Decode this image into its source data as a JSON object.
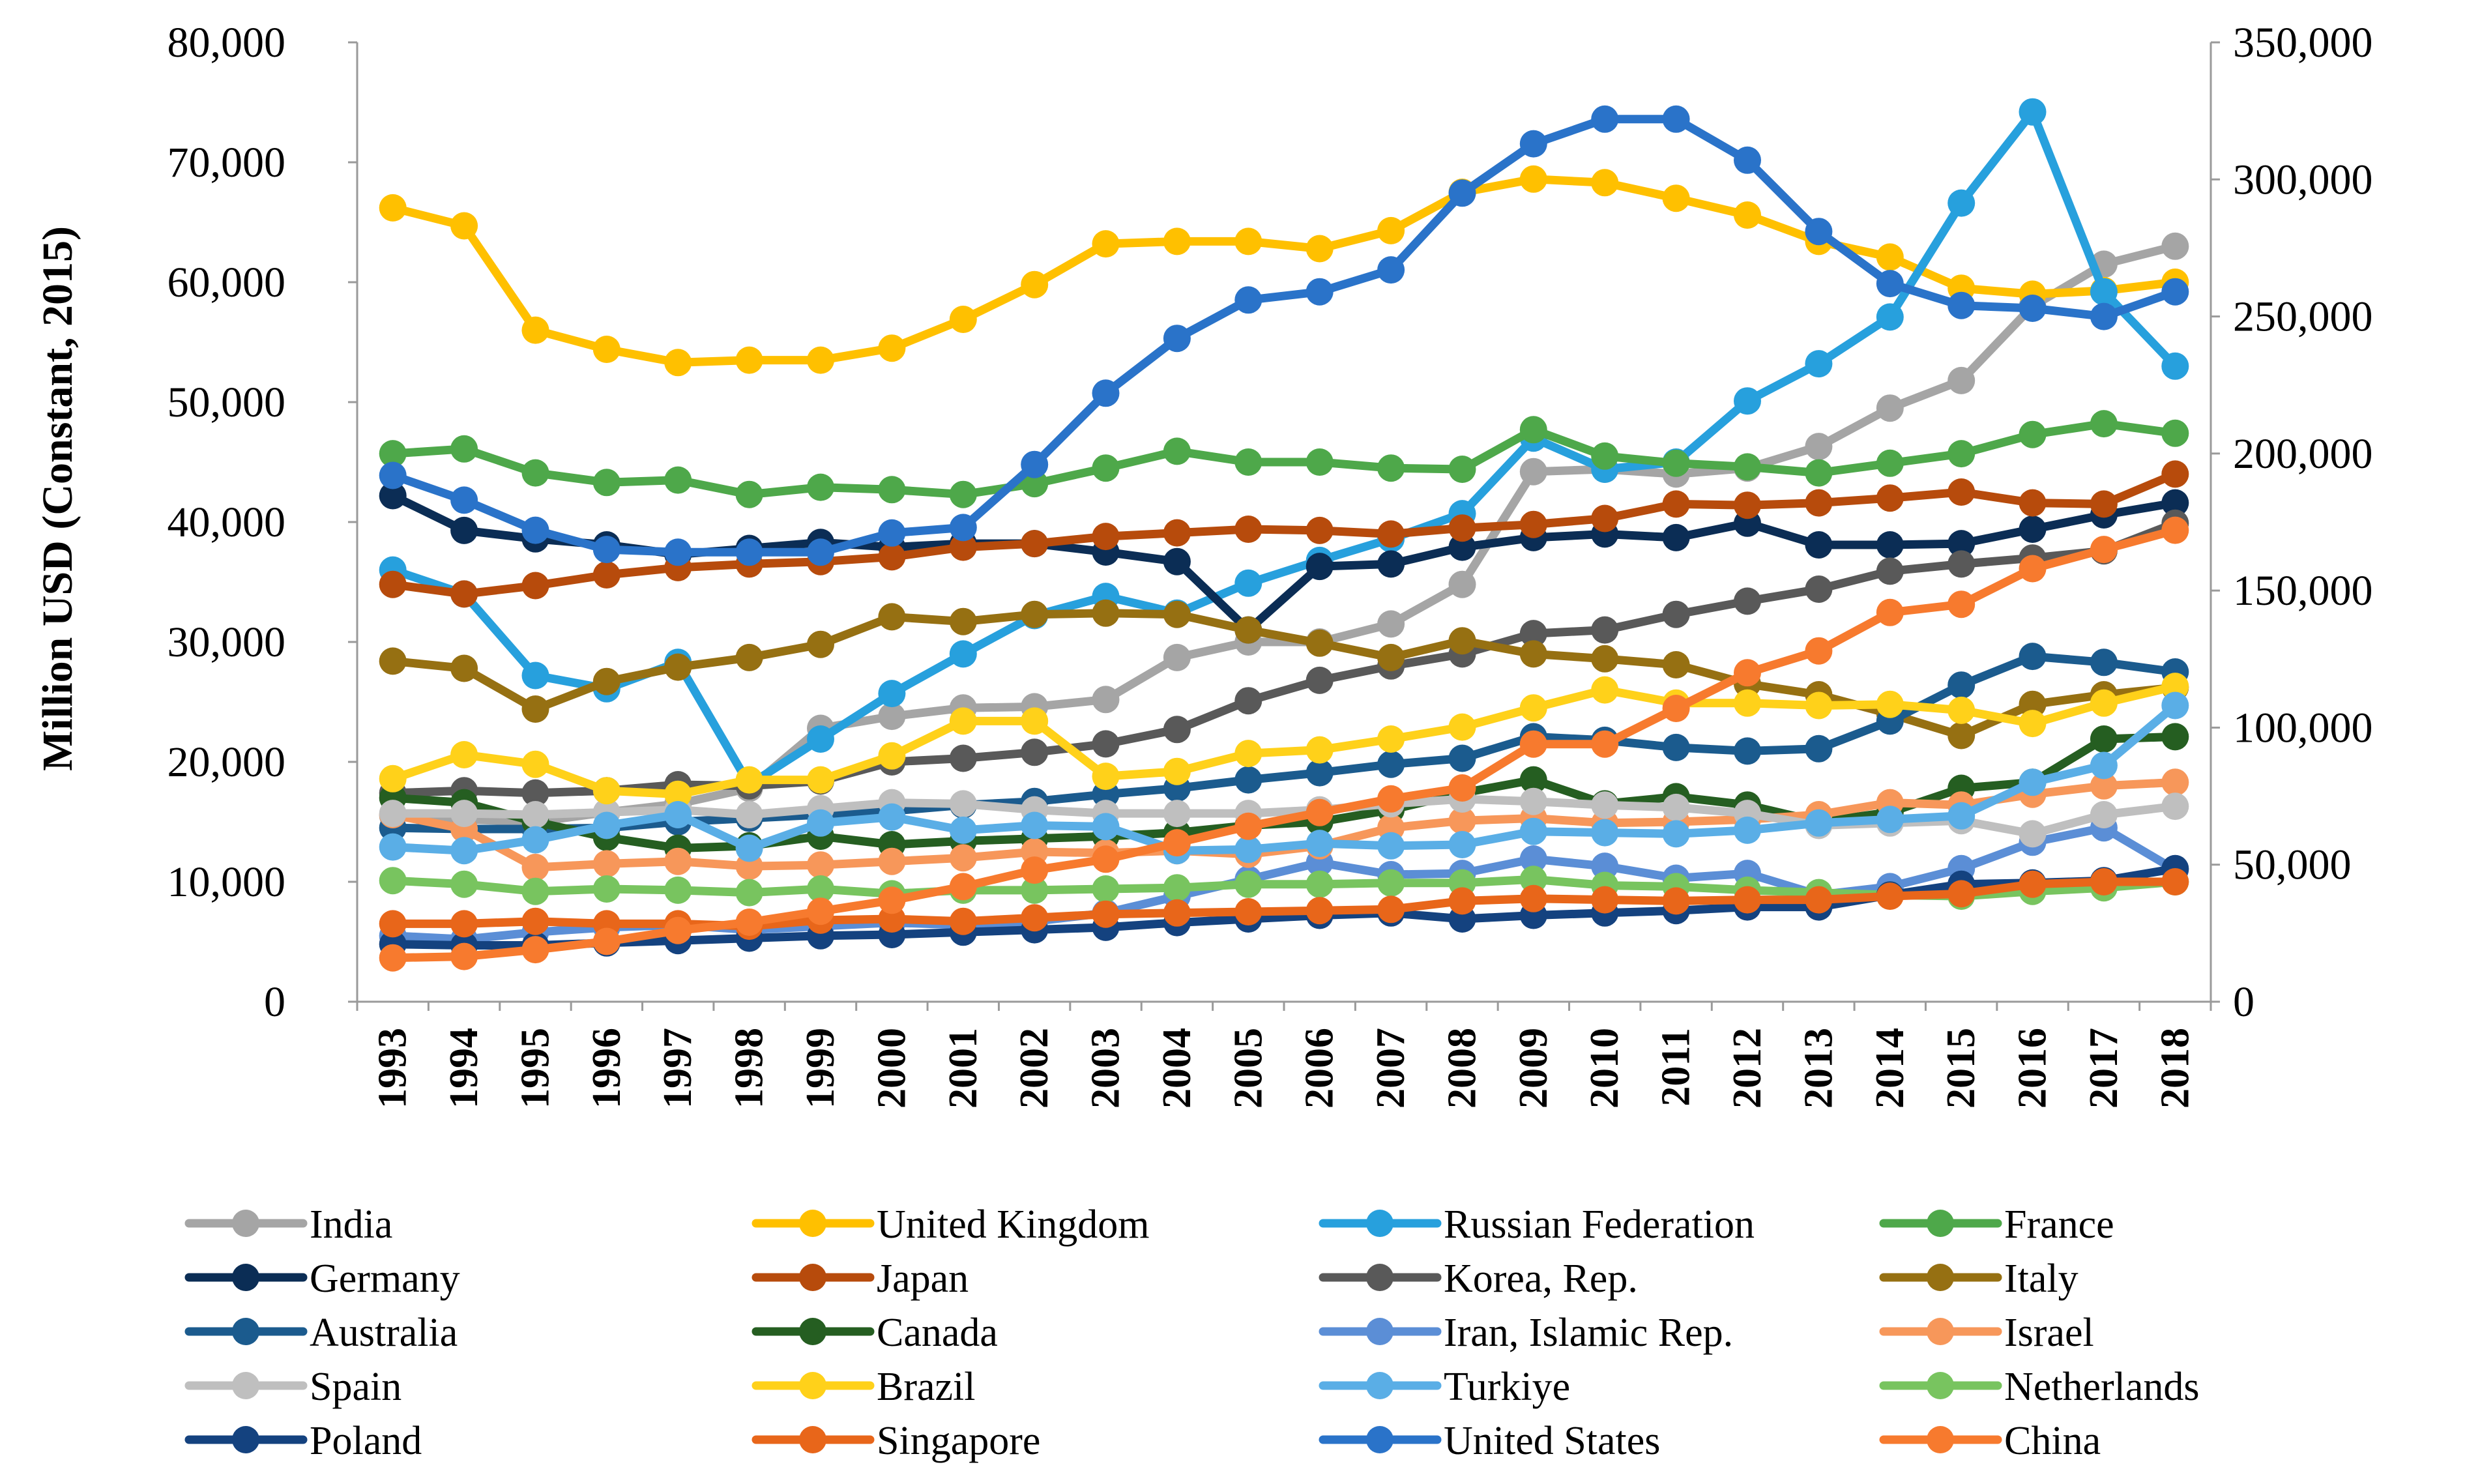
{
  "chart_data": {
    "type": "line",
    "title": "",
    "xlabel": "",
    "ylabel": "Million USD (Constant, 2015)",
    "ylim": [
      0,
      80000
    ],
    "y2lim": [
      0,
      350000
    ],
    "yticks": [
      "0",
      "10,000",
      "20,000",
      "30,000",
      "40,000",
      "50,000",
      "60,000",
      "70,000",
      "80,000"
    ],
    "y2ticks": [
      "0",
      "50,000",
      "100,000",
      "150,000",
      "200,000",
      "250,000",
      "300,000",
      "350,000"
    ],
    "grid": false,
    "legend_position": "bottom",
    "x": [
      "1993",
      "1994",
      "1995",
      "1996",
      "1997",
      "1998",
      "1999",
      "2000",
      "2001",
      "2002",
      "2003",
      "2004",
      "2005",
      "2006",
      "2007",
      "2008",
      "2009",
      "2010",
      "2011",
      "2012",
      "2013",
      "2014",
      "2015",
      "2016",
      "2017",
      "2018"
    ],
    "series": [
      {
        "name": "India",
        "color": "#a5a5a5",
        "axis": "left",
        "values": [
          15500,
          15200,
          15000,
          15800,
          16500,
          17800,
          22800,
          23800,
          24500,
          24600,
          25200,
          28700,
          30000,
          30000,
          31500,
          34800,
          44200,
          44400,
          44000,
          44500,
          46300,
          49500,
          51800,
          58000,
          61500,
          63000
        ]
      },
      {
        "name": "United Kingdom",
        "color": "#ffc000",
        "axis": "left",
        "values": [
          66200,
          64700,
          56000,
          54400,
          53300,
          53500,
          53500,
          54500,
          56900,
          59800,
          63200,
          63400,
          63400,
          62800,
          64300,
          67500,
          68600,
          68300,
          67000,
          65600,
          63400,
          62100,
          59500,
          59000,
          59300,
          60000
        ]
      },
      {
        "name": "Russian Federation",
        "color": "#27a0dd",
        "axis": "left",
        "values": [
          36000,
          34000,
          27200,
          26100,
          28300,
          18100,
          21900,
          25700,
          29000,
          32200,
          33800,
          32400,
          34900,
          36800,
          38600,
          40700,
          47000,
          44400,
          45000,
          50100,
          53200,
          57100,
          66600,
          74200,
          59200,
          53000
        ]
      },
      {
        "name": "France",
        "color": "#4ea84a",
        "axis": "left",
        "values": [
          45700,
          46100,
          44100,
          43300,
          43500,
          42300,
          42900,
          42700,
          42300,
          43200,
          44500,
          45900,
          45000,
          45000,
          44500,
          44400,
          47700,
          45500,
          44900,
          44600,
          44100,
          44900,
          45700,
          47300,
          48200,
          47400
        ]
      },
      {
        "name": "Germany",
        "color": "#0b2d55",
        "axis": "left",
        "values": [
          42200,
          39300,
          38600,
          38100,
          37300,
          37800,
          38300,
          37900,
          38200,
          38200,
          37500,
          36700,
          31000,
          36300,
          36500,
          37900,
          38700,
          39000,
          38700,
          39900,
          38100,
          38100,
          38200,
          39400,
          40600,
          41600
        ]
      },
      {
        "name": "Japan",
        "color": "#b74b0c",
        "axis": "left",
        "values": [
          34800,
          34000,
          34700,
          35600,
          36200,
          36500,
          36700,
          37100,
          37900,
          38200,
          38800,
          39100,
          39400,
          39300,
          39000,
          39500,
          39800,
          40300,
          41500,
          41400,
          41600,
          42000,
          42500,
          41600,
          41500,
          44000
        ]
      },
      {
        "name": "Korea, Rep.",
        "color": "#595959",
        "axis": "left",
        "values": [
          17400,
          17600,
          17400,
          17600,
          18100,
          18000,
          18400,
          20000,
          20300,
          20800,
          21500,
          22700,
          25100,
          26800,
          28000,
          29000,
          30700,
          31000,
          32300,
          33400,
          34400,
          35900,
          36500,
          37000,
          37600,
          39900
        ]
      },
      {
        "name": "Italy",
        "color": "#967012",
        "axis": "left",
        "values": [
          28400,
          27800,
          24400,
          26700,
          27900,
          28700,
          29800,
          32100,
          31700,
          32300,
          32400,
          32300,
          31000,
          29900,
          28700,
          30100,
          29000,
          28600,
          28100,
          26500,
          25600,
          24000,
          22200,
          24800,
          25600,
          26200
        ]
      },
      {
        "name": "Australia",
        "color": "#1b5b8e",
        "axis": "left",
        "values": [
          14500,
          14400,
          14400,
          14500,
          15000,
          15300,
          15600,
          15900,
          16400,
          16700,
          17300,
          17800,
          18500,
          19100,
          19800,
          20300,
          22100,
          21800,
          21200,
          20900,
          21100,
          23400,
          26400,
          28800,
          28300,
          27500
        ]
      },
      {
        "name": "Canada",
        "color": "#255e21",
        "axis": "left",
        "values": [
          17000,
          16600,
          15000,
          13700,
          12800,
          13000,
          13800,
          13100,
          13400,
          13600,
          13800,
          14100,
          14700,
          15000,
          16000,
          17400,
          18500,
          16500,
          17100,
          16400,
          15000,
          15800,
          17800,
          18300,
          21900,
          22100
        ]
      },
      {
        "name": "Iran, Islamic Rep.",
        "color": "#5b8ed6",
        "axis": "left",
        "values": [
          5500,
          5200,
          5800,
          6200,
          6400,
          6000,
          6300,
          6600,
          6400,
          6700,
          7400,
          8800,
          10200,
          11600,
          10600,
          10700,
          11900,
          11300,
          10300,
          10700,
          8900,
          9600,
          11100,
          13300,
          14500,
          11000
        ]
      },
      {
        "name": "Israel",
        "color": "#f7975a",
        "axis": "left",
        "values": [
          15600,
          14400,
          11200,
          11500,
          11700,
          11300,
          11400,
          11700,
          12000,
          12500,
          12400,
          12600,
          12300,
          13000,
          14500,
          15100,
          15300,
          14900,
          15000,
          15200,
          15600,
          16600,
          16400,
          17300,
          18000,
          18300
        ]
      },
      {
        "name": "Spain",
        "color": "#bfbfbf",
        "axis": "left",
        "values": [
          15700,
          15700,
          15600,
          15800,
          16000,
          15600,
          16100,
          16600,
          16500,
          16000,
          15700,
          15700,
          15700,
          16000,
          16500,
          16900,
          16700,
          16400,
          16200,
          15700,
          14700,
          14900,
          15100,
          14000,
          15600,
          16300
        ]
      },
      {
        "name": "Brazil",
        "color": "#ffd11a",
        "axis": "left",
        "values": [
          18600,
          20600,
          19800,
          17600,
          17300,
          18500,
          18500,
          20500,
          23400,
          23400,
          18800,
          19200,
          20700,
          21000,
          21900,
          22900,
          24500,
          26000,
          24900,
          24900,
          24700,
          24800,
          24300,
          23200,
          24900,
          26300
        ]
      },
      {
        "name": "Turkiye",
        "color": "#5aaee6",
        "axis": "left",
        "values": [
          12900,
          12600,
          13500,
          14700,
          15600,
          12800,
          14900,
          15400,
          14300,
          14700,
          14600,
          12600,
          12700,
          13200,
          13000,
          13100,
          14200,
          14100,
          14000,
          14300,
          14900,
          15200,
          15500,
          18300,
          19700,
          24700
        ]
      },
      {
        "name": "Netherlands",
        "color": "#78c45f",
        "axis": "left",
        "values": [
          10100,
          9800,
          9200,
          9400,
          9300,
          9100,
          9400,
          9000,
          9300,
          9300,
          9400,
          9500,
          9800,
          9800,
          9900,
          9900,
          10200,
          9700,
          9600,
          9300,
          9100,
          8900,
          8800,
          9200,
          9500,
          10000
        ]
      },
      {
        "name": "Poland",
        "color": "#14427f",
        "axis": "left",
        "values": [
          4800,
          4700,
          4700,
          4900,
          5100,
          5300,
          5500,
          5600,
          5800,
          6000,
          6200,
          6600,
          6900,
          7200,
          7400,
          6900,
          7200,
          7400,
          7600,
          7900,
          7900,
          8900,
          9800,
          9900,
          10100,
          11100
        ]
      },
      {
        "name": "Singapore",
        "color": "#e8661a",
        "axis": "left",
        "values": [
          6500,
          6500,
          6700,
          6500,
          6500,
          6300,
          6800,
          6900,
          6700,
          7000,
          7300,
          7400,
          7500,
          7600,
          7700,
          8400,
          8600,
          8500,
          8400,
          8500,
          8500,
          8800,
          9000,
          9800,
          10000,
          10000
        ]
      },
      {
        "name": "United States",
        "color": "#2a73c9",
        "axis": "right",
        "values": [
          192000,
          183000,
          172000,
          165000,
          164000,
          164000,
          164000,
          171000,
          173000,
          196000,
          222000,
          242000,
          256000,
          259000,
          267000,
          295000,
          313000,
          322000,
          322000,
          307000,
          281000,
          262000,
          254000,
          253000,
          250000,
          259000
        ]
      },
      {
        "name": "China",
        "color": "#f77a2e",
        "axis": "right",
        "values": [
          16000,
          16500,
          19000,
          22000,
          26000,
          29000,
          33000,
          37000,
          42000,
          48000,
          52000,
          58000,
          64000,
          69000,
          74000,
          78000,
          94000,
          94000,
          107000,
          120000,
          128000,
          142000,
          145000,
          158000,
          165000,
          172000
        ]
      }
    ]
  }
}
